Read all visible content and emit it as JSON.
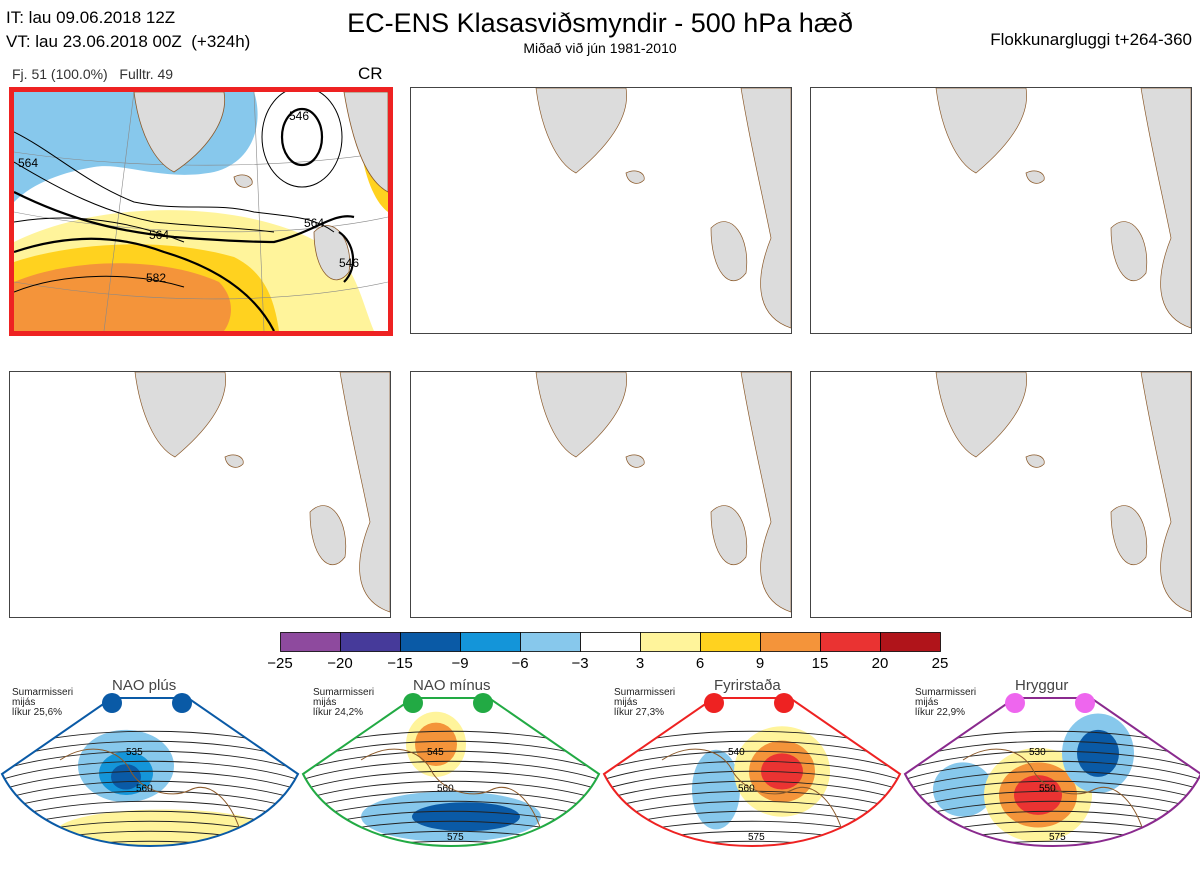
{
  "header": {
    "init_time": "IT: lau 09.06.2018 12Z",
    "valid_time": "VT: lau 23.06.2018 00Z  (+324h)",
    "title": "EC-ENS Klasasviðsmyndir - 500 hPa hæð",
    "subtitle": "Miðað við jún 1981-2010",
    "window": "Flokkunargluggi t+264-360"
  },
  "main_panel": {
    "members": "Fj. 51 (100.0%)",
    "representative": "Fulltr. 49",
    "regime_code": "CR",
    "contour_labels": [
      "546",
      "564",
      "564",
      "582",
      "564",
      "546"
    ]
  },
  "colorbar": {
    "ticks": [
      "−25",
      "−20",
      "−15",
      "−9",
      "−6",
      "−3",
      "3",
      "6",
      "9",
      "15",
      "20",
      "25"
    ],
    "colors": [
      "#8e4a9e",
      "#463a9a",
      "#0a5aa6",
      "#1495d9",
      "#87c8ec",
      "#ffffff",
      "#fff49b",
      "#ffd21f",
      "#f4943a",
      "#ea3332",
      "#b0141a"
    ]
  },
  "regimes": [
    {
      "name": "NAO plús",
      "season": "Sumarmisseri\nmijás\nlíkur 25,6%",
      "color": "#0a5aa6",
      "contours": [
        "535",
        "560"
      ]
    },
    {
      "name": "NAO mínus",
      "season": "Sumarmisseri\nmijás\nlíkur 24,2%",
      "color": "#22aa44",
      "contours": [
        "545",
        "560",
        "575"
      ]
    },
    {
      "name": "Fyrirstaða",
      "season": "Sumarmisseri\nmijás\nlíkur 27,3%",
      "color": "#ee2222",
      "contours": [
        "540",
        "560",
        "575"
      ]
    },
    {
      "name": "Hryggur",
      "season": "Sumarmisseri\nmijás\nlíkur 22,9%",
      "color": "#8a2a8e",
      "contours": [
        "530",
        "550",
        "575"
      ]
    }
  ],
  "empty_panel_count": 5
}
